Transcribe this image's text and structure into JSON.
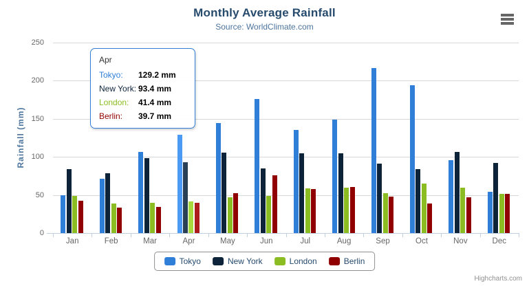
{
  "chart": {
    "title": "Monthly Average Rainfall",
    "subtitle": "Source: WorldClimate.com",
    "y_axis_title": "Rainfall (mm)",
    "credits_label": "Highcharts.com"
  },
  "chart_data": {
    "type": "bar",
    "title": "Monthly Average Rainfall",
    "subtitle": "Source: WorldClimate.com",
    "categories": [
      "Jan",
      "Feb",
      "Mar",
      "Apr",
      "May",
      "Jun",
      "Jul",
      "Aug",
      "Sep",
      "Oct",
      "Nov",
      "Dec"
    ],
    "series": [
      {
        "name": "Tokyo",
        "color": "#2f7ed8",
        "values": [
          49.9,
          71.5,
          106.4,
          129.2,
          144.0,
          176.0,
          135.6,
          148.5,
          216.4,
          194.1,
          95.6,
          54.4
        ]
      },
      {
        "name": "New York",
        "color": "#0d233a",
        "values": [
          83.6,
          78.8,
          98.5,
          93.4,
          106.0,
          84.5,
          105.0,
          104.3,
          91.2,
          83.5,
          106.6,
          92.3
        ]
      },
      {
        "name": "London",
        "color": "#8bbc21",
        "values": [
          48.9,
          38.8,
          39.3,
          41.4,
          47.0,
          48.3,
          59.0,
          59.6,
          52.4,
          65.2,
          59.3,
          51.2
        ]
      },
      {
        "name": "Berlin",
        "color": "#910000",
        "values": [
          42.4,
          33.2,
          34.5,
          39.7,
          52.6,
          75.5,
          57.4,
          60.4,
          47.6,
          39.1,
          46.8,
          51.1
        ]
      }
    ],
    "xlabel": "",
    "ylabel": "Rainfall (mm)",
    "ylim": [
      0,
      250
    ],
    "yticks": [
      0,
      50,
      100,
      150,
      200,
      250
    ],
    "unit": "mm",
    "grid": true,
    "legend_position": "bottom",
    "hovered_category": "Apr"
  },
  "tooltip": {
    "header": "Apr",
    "border_color": "#2f7ed8",
    "rows": [
      {
        "name": "Tokyo:",
        "value": "129.2 mm",
        "color": "#2f7ed8"
      },
      {
        "name": "New York:",
        "value": "93.4 mm",
        "color": "#0d233a"
      },
      {
        "name": "London:",
        "value": "41.4 mm",
        "color": "#8bbc21"
      },
      {
        "name": "Berlin:",
        "value": "39.7 mm",
        "color": "#910000"
      }
    ]
  },
  "legend": {
    "items": [
      {
        "label": "Tokyo",
        "color": "#2f7ed8"
      },
      {
        "label": "New York",
        "color": "#0d233a"
      },
      {
        "label": "London",
        "color": "#8bbc21"
      },
      {
        "label": "Berlin",
        "color": "#910000"
      }
    ]
  },
  "colors": {
    "title": "#274b6d",
    "subtitle": "#4d759e",
    "axis_label": "#666666",
    "axis_line": "#c0d0e0",
    "gridline": "#d8d8d8",
    "legend_text": "#274b6d",
    "credits": "#909090"
  }
}
